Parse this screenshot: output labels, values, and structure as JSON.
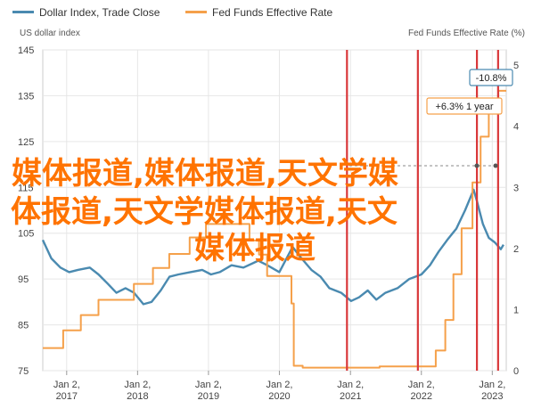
{
  "chart_data": {
    "type": "line",
    "legend": [
      {
        "name": "Dollar Index, Trade Close",
        "color": "#4a8ab0"
      },
      {
        "name": "Fed Funds Effective Rate",
        "color": "#f5a04a"
      }
    ],
    "left_axis": {
      "title": "US dollar index",
      "ticks": [
        "145",
        "135",
        "125",
        "115",
        "105",
        "95",
        "85",
        "75"
      ],
      "min": 75,
      "max": 145
    },
    "right_axis": {
      "title": "Fed Funds Effective Rate (%)",
      "ticks": [
        "5",
        "4",
        "3",
        "2",
        "1",
        "0"
      ],
      "min": 0,
      "max": 5.25
    },
    "x_ticks": [
      {
        "line1": "Jan 2,",
        "line2": "2017",
        "date": "2017-01-02"
      },
      {
        "line1": "Jan 2,",
        "line2": "2018",
        "date": "2018-01-02"
      },
      {
        "line1": "Jan 2,",
        "line2": "2019",
        "date": "2019-01-02"
      },
      {
        "line1": "Jan 2,",
        "line2": "2020",
        "date": "2020-01-02"
      },
      {
        "line1": "Jan 2,",
        "line2": "2021",
        "date": "2021-01-02"
      },
      {
        "line1": "Jan 2,",
        "line2": "2022",
        "date": "2022-01-02"
      },
      {
        "line1": "Jan 2,",
        "line2": "2023",
        "date": "2023-01-02"
      }
    ],
    "x_range": [
      "2016-09-01",
      "2023-03-15"
    ],
    "grid": true,
    "series": [
      {
        "name": "Dollar Index, Trade Close",
        "axis": "left",
        "points": [
          [
            "2016-09-01",
            103.5
          ],
          [
            "2016-10-15",
            99.5
          ],
          [
            "2016-12-01",
            97.5
          ],
          [
            "2017-01-15",
            96.5
          ],
          [
            "2017-03-01",
            97
          ],
          [
            "2017-05-01",
            97.5
          ],
          [
            "2017-06-15",
            96
          ],
          [
            "2017-08-01",
            94
          ],
          [
            "2017-09-15",
            92
          ],
          [
            "2017-11-01",
            93
          ],
          [
            "2017-12-15",
            92
          ],
          [
            "2018-02-01",
            89.5
          ],
          [
            "2018-03-15",
            90
          ],
          [
            "2018-05-01",
            92.5
          ],
          [
            "2018-06-15",
            95.5
          ],
          [
            "2018-08-01",
            96
          ],
          [
            "2018-10-01",
            96.5
          ],
          [
            "2018-12-01",
            97
          ],
          [
            "2019-01-15",
            96
          ],
          [
            "2019-03-01",
            96.5
          ],
          [
            "2019-05-01",
            98
          ],
          [
            "2019-07-01",
            97.5
          ],
          [
            "2019-09-15",
            99
          ],
          [
            "2019-11-01",
            98
          ],
          [
            "2020-01-02",
            96.5
          ],
          [
            "2020-03-10",
            102
          ],
          [
            "2020-04-15",
            100
          ],
          [
            "2020-06-15",
            97
          ],
          [
            "2020-08-01",
            95.5
          ],
          [
            "2020-09-15",
            93
          ],
          [
            "2020-11-15",
            92
          ],
          [
            "2021-01-05",
            90.2
          ],
          [
            "2021-02-15",
            91
          ],
          [
            "2021-04-01",
            92.5
          ],
          [
            "2021-05-15",
            90.5
          ],
          [
            "2021-07-01",
            92
          ],
          [
            "2021-09-01",
            93
          ],
          [
            "2021-11-01",
            95
          ],
          [
            "2022-01-02",
            96
          ],
          [
            "2022-02-15",
            98
          ],
          [
            "2022-04-01",
            101
          ],
          [
            "2022-05-15",
            103.5
          ],
          [
            "2022-07-01",
            106
          ],
          [
            "2022-08-15",
            110
          ],
          [
            "2022-09-28",
            114.5
          ],
          [
            "2022-10-15",
            112
          ],
          [
            "2022-11-15",
            107
          ],
          [
            "2022-12-15",
            104
          ],
          [
            "2023-01-15",
            103
          ],
          [
            "2023-02-15",
            101.5
          ],
          [
            "2023-03-01",
            102.5
          ]
        ]
      },
      {
        "name": "Fed Funds Effective Rate",
        "axis": "right",
        "step": true,
        "points": [
          [
            "2016-09-01",
            0.37
          ],
          [
            "2016-12-15",
            0.66
          ],
          [
            "2017-03-16",
            0.91
          ],
          [
            "2017-06-15",
            1.16
          ],
          [
            "2017-12-14",
            1.42
          ],
          [
            "2018-03-22",
            1.68
          ],
          [
            "2018-06-14",
            1.91
          ],
          [
            "2018-09-27",
            2.18
          ],
          [
            "2018-12-20",
            2.4
          ],
          [
            "2019-08-01",
            2.13
          ],
          [
            "2019-09-19",
            1.9
          ],
          [
            "2019-10-31",
            1.55
          ],
          [
            "2020-03-04",
            1.1
          ],
          [
            "2020-03-16",
            0.08
          ],
          [
            "2020-05-01",
            0.05
          ],
          [
            "2021-06-01",
            0.07
          ],
          [
            "2022-03-17",
            0.33
          ],
          [
            "2022-05-05",
            0.83
          ],
          [
            "2022-06-16",
            1.58
          ],
          [
            "2022-07-28",
            2.33
          ],
          [
            "2022-09-22",
            3.08
          ],
          [
            "2022-11-03",
            3.83
          ],
          [
            "2022-12-15",
            4.33
          ],
          [
            "2023-02-02",
            4.58
          ],
          [
            "2023-03-15",
            4.58
          ]
        ]
      }
    ],
    "event_lines": [
      "2020-12-15",
      "2021-12-15",
      "2022-10-15",
      "2023-02-01"
    ],
    "badges": [
      {
        "text": "-10.8%",
        "color": "#4a8ab0"
      },
      {
        "text": "+6.3% 1 year",
        "color": "#f5a04a"
      }
    ]
  },
  "overlay": {
    "line1": "媒体报道,媒体报道,天文学媒",
    "line2": "体报道,天文学媒体报道,天文",
    "line3": "媒体报道",
    "color": "#ff7300"
  }
}
